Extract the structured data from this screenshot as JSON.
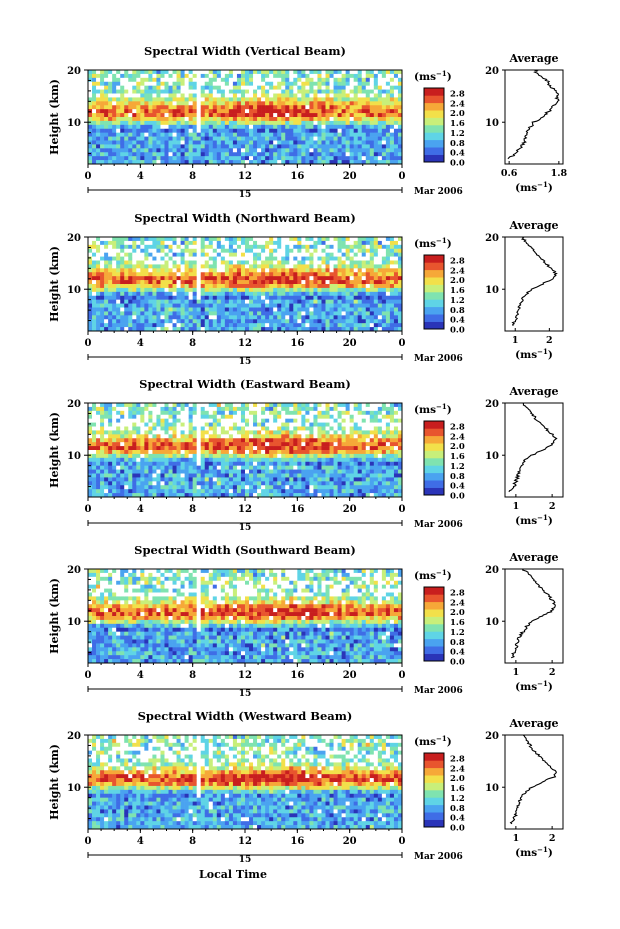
{
  "figure": {
    "xlabel": "Local Time",
    "date_label": "Mar 2006",
    "day_label": "15",
    "colorbar_unit": "(ms",
    "colorbar_unit_exp": "−1",
    "colorbar_unit_close": ")",
    "colorbar_ticks": [
      "2.8",
      "2.4",
      "2.0",
      "1.6",
      "1.2",
      "0.8",
      "0.4",
      "0.0"
    ],
    "colors": [
      "#ffffff",
      "#2a34b8",
      "#3f6de6",
      "#4aa3f0",
      "#5fd4e6",
      "#7fe3b0",
      "#c8ef7a",
      "#f2e04a",
      "#f6a838",
      "#e8552e",
      "#c81e1e"
    ]
  },
  "chart_data": [
    {
      "type": "heatmap",
      "title": "Spectral Width (Vertical Beam)",
      "ylabel": "Height (km)",
      "xlim": [
        0,
        24
      ],
      "ylim": [
        2,
        20
      ],
      "x_ticks": [
        "0",
        "4",
        "8",
        "12",
        "16",
        "20",
        "0"
      ],
      "y_ticks": [
        "20",
        "10"
      ],
      "colorbar_range": [
        0.0,
        3.0
      ],
      "pattern": "low (0.4-1.2) below 10 km, peak 1.6-2.8 near 11-15 km",
      "average": {
        "title": "Average",
        "xlabel": "(ms",
        "xlabel_exp": "−1",
        "xlabel_close": ")",
        "x_ticks": [
          "0.6",
          "1.8"
        ],
        "xlim": [
          0.5,
          1.9
        ],
        "height": [
          3,
          4,
          5,
          6,
          7,
          8,
          9,
          10,
          11,
          12,
          13,
          14,
          15,
          16,
          17,
          18,
          19,
          20
        ],
        "width": [
          0.6,
          0.75,
          0.85,
          0.95,
          1.0,
          1.05,
          1.1,
          1.2,
          1.4,
          1.55,
          1.65,
          1.75,
          1.78,
          1.72,
          1.6,
          1.5,
          1.35,
          1.2
        ]
      }
    },
    {
      "type": "heatmap",
      "title": "Spectral Width (Northward Beam)",
      "ylabel": "Height (km)",
      "xlim": [
        0,
        24
      ],
      "ylim": [
        2,
        20
      ],
      "x_ticks": [
        "0",
        "4",
        "8",
        "12",
        "16",
        "20",
        "0"
      ],
      "y_ticks": [
        "20",
        "10"
      ],
      "colorbar_range": [
        0.0,
        3.0
      ],
      "pattern": "low below 8 km, peak 2.0-2.8 near 10-14 km",
      "average": {
        "title": "Average",
        "xlabel": "(ms",
        "xlabel_exp": "−1",
        "xlabel_close": ")",
        "x_ticks": [
          "1",
          "2"
        ],
        "xlim": [
          0.7,
          2.4
        ],
        "height": [
          3,
          4,
          5,
          6,
          7,
          8,
          9,
          10,
          11,
          12,
          13,
          14,
          15,
          16,
          17,
          18,
          19,
          20
        ],
        "width": [
          0.9,
          1.0,
          1.05,
          1.1,
          1.15,
          1.2,
          1.3,
          1.5,
          1.8,
          2.1,
          2.2,
          2.05,
          1.9,
          1.75,
          1.6,
          1.45,
          1.3,
          1.2
        ]
      }
    },
    {
      "type": "heatmap",
      "title": "Spectral Width (Eastward Beam)",
      "ylabel": "Height (km)",
      "xlim": [
        0,
        24
      ],
      "ylim": [
        2,
        20
      ],
      "x_ticks": [
        "0",
        "4",
        "8",
        "12",
        "16",
        "20",
        "0"
      ],
      "y_ticks": [
        "20",
        "10"
      ],
      "colorbar_range": [
        0.0,
        3.0
      ],
      "pattern": "low below 8 km, peak 2.0-2.8 near 10-15 km",
      "average": {
        "title": "Average",
        "xlabel": "(ms",
        "xlabel_exp": "−1",
        "xlabel_close": ")",
        "x_ticks": [
          "1",
          "2"
        ],
        "xlim": [
          0.7,
          2.3
        ],
        "height": [
          3,
          4,
          5,
          6,
          7,
          8,
          9,
          10,
          11,
          12,
          13,
          14,
          15,
          16,
          17,
          18,
          19,
          20
        ],
        "width": [
          0.85,
          0.95,
          1.0,
          1.05,
          1.1,
          1.15,
          1.25,
          1.45,
          1.75,
          2.0,
          2.1,
          2.0,
          1.85,
          1.7,
          1.55,
          1.45,
          1.3,
          1.2
        ]
      }
    },
    {
      "type": "heatmap",
      "title": "Spectral Width (Southward Beam)",
      "ylabel": "Height (km)",
      "xlim": [
        0,
        24
      ],
      "ylim": [
        2,
        20
      ],
      "x_ticks": [
        "0",
        "4",
        "8",
        "12",
        "16",
        "20",
        "0"
      ],
      "y_ticks": [
        "20",
        "10"
      ],
      "colorbar_range": [
        0.0,
        3.0
      ],
      "pattern": "low below 8 km, peak 2.0-2.8 near 10-14 km",
      "average": {
        "title": "Average",
        "xlabel": "(ms",
        "xlabel_exp": "−1",
        "xlabel_close": ")",
        "x_ticks": [
          "1",
          "2"
        ],
        "xlim": [
          0.7,
          2.3
        ],
        "height": [
          3,
          4,
          5,
          6,
          7,
          8,
          9,
          10,
          11,
          12,
          13,
          14,
          15,
          16,
          17,
          18,
          19,
          20
        ],
        "width": [
          0.9,
          0.95,
          1.0,
          1.05,
          1.1,
          1.2,
          1.3,
          1.45,
          1.7,
          2.0,
          2.1,
          2.0,
          1.9,
          1.75,
          1.6,
          1.5,
          1.35,
          1.2
        ]
      }
    },
    {
      "type": "heatmap",
      "title": "Spectral Width (Westward Beam)",
      "ylabel": "Height (km)",
      "xlim": [
        0,
        24
      ],
      "ylim": [
        2,
        20
      ],
      "x_ticks": [
        "0",
        "4",
        "8",
        "12",
        "16",
        "20",
        "0"
      ],
      "y_ticks": [
        "20",
        "10"
      ],
      "colorbar_range": [
        0.0,
        3.0
      ],
      "pattern": "low below 8 km, peak 2.0-2.8 near 10-13 km",
      "average": {
        "title": "Average",
        "xlabel": "(ms",
        "xlabel_exp": "−1",
        "xlabel_close": ")",
        "x_ticks": [
          "1",
          "2"
        ],
        "xlim": [
          0.7,
          2.3
        ],
        "height": [
          3,
          4,
          5,
          6,
          7,
          8,
          9,
          10,
          11,
          12,
          13,
          14,
          15,
          16,
          17,
          18,
          19,
          20
        ],
        "width": [
          0.85,
          0.95,
          1.0,
          1.05,
          1.1,
          1.15,
          1.25,
          1.45,
          1.75,
          2.05,
          2.1,
          1.95,
          1.8,
          1.65,
          1.5,
          1.4,
          1.3,
          1.2
        ]
      }
    }
  ]
}
